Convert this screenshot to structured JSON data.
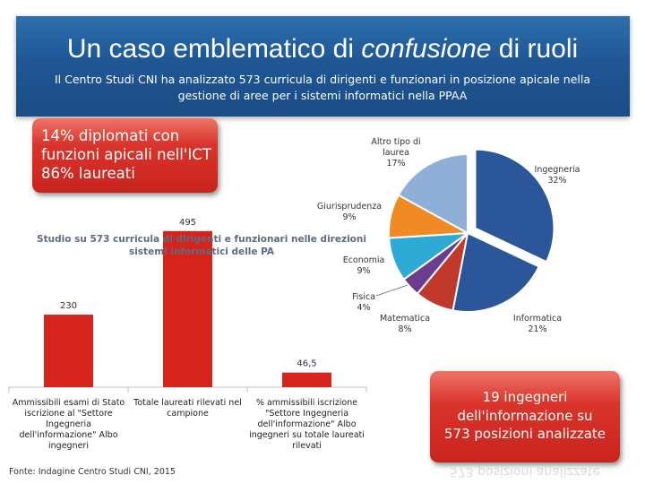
{
  "title_pre": "Un caso emblematico di ",
  "title_em": "confusione",
  "title_post": " di ruoli",
  "subtitle": "Il Centro Studi CNI ha analizzato 573 curricula di dirigenti e funzionari in posizione apicale nella gestione di aree per i sistemi informatici nella PPAA",
  "callout_left": [
    "14% diplomati con",
    "funzioni apicali nell'ICT",
    "86% laureati"
  ],
  "callout_right": [
    "19 ingegneri",
    "dell'informazione su",
    "573 posizioni analizzate"
  ],
  "callout_right_reflection": "573 posizioni analizzate",
  "source": "Fonte: Indagine Centro Studi CNI, 2015",
  "colors": {
    "header": "#1f5795",
    "callout": "#d32f27",
    "bar": "#d6231c"
  },
  "chart_data": [
    {
      "type": "pie",
      "slices": [
        {
          "label": "Ingegneria",
          "value": 32,
          "display": "32%",
          "color": "#2b579a"
        },
        {
          "label": "Informatica",
          "value": 21,
          "display": "21%",
          "color": "#2b579a"
        },
        {
          "label": "Matematica",
          "value": 8,
          "display": "8%",
          "color": "#c0392b"
        },
        {
          "label": "Fisica",
          "value": 4,
          "display": "4%",
          "color": "#6a3e8c"
        },
        {
          "label": "Economia",
          "value": 9,
          "display": "9%",
          "color": "#2eabd4"
        },
        {
          "label": "Giurisprudenza",
          "value": 9,
          "display": "9%",
          "color": "#f08a24"
        },
        {
          "label": "Altro tipo di laurea",
          "value": 17,
          "display": "17%",
          "color": "#8fafd8"
        }
      ]
    },
    {
      "type": "bar",
      "title": "Studio su 573 curricula di dirigenti e funzionari nelle direzioni sistemi informatici delle PA",
      "categories": [
        "Ammissibili esami di Stato iscrizione al \"Settore Ingegneria dell'informazione\" Albo ingegneri",
        "Totale laureati rilevati nel campione",
        "% ammissibili iscrizione \"Settore Ingegneria dell'informazione\" Albo ingegneri su totale laureati rilevati"
      ],
      "values": [
        230,
        495,
        46.5
      ],
      "value_labels": [
        "230",
        "495",
        "46,5"
      ],
      "category_lines": [
        [
          "Ammissibili esami di Stato",
          "iscrizione al \"Settore",
          "Ingegneria",
          "dell'informazione\" Albo",
          "ingegneri"
        ],
        [
          "Totale laureati rilevati nel",
          "campione"
        ],
        [
          "% ammissibili iscrizione",
          "\"Settore Ingegneria",
          "dell'informazione\" Albo",
          "ingegneri su totale laureati",
          "rilevati"
        ]
      ],
      "ylim": [
        0,
        540
      ]
    }
  ]
}
